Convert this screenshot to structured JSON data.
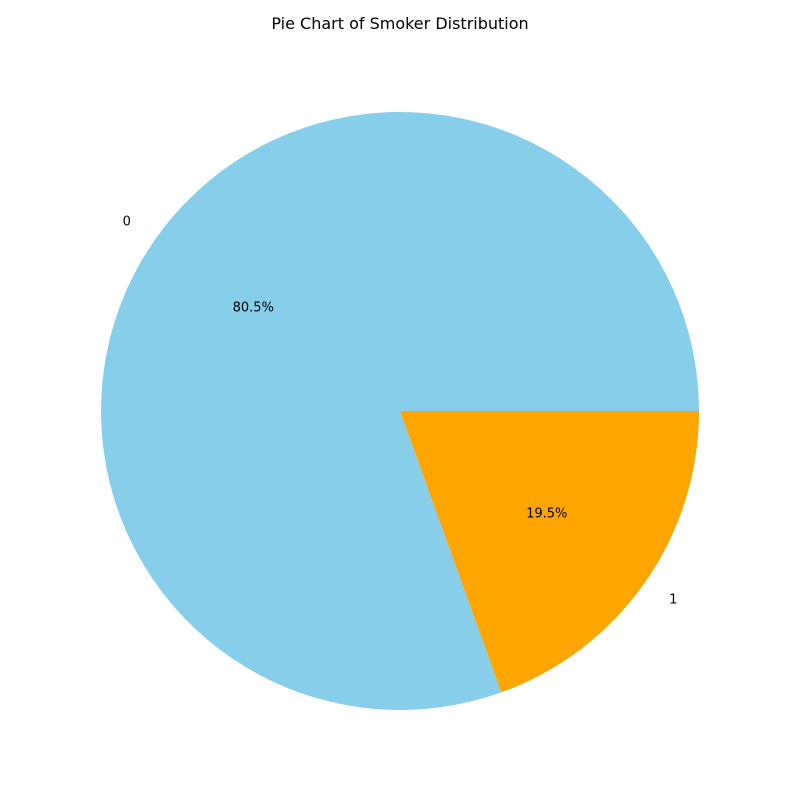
{
  "chart_data": {
    "type": "pie",
    "title": "Pie Chart of Smoker Distribution",
    "categories": [
      "0",
      "1"
    ],
    "values": [
      80.5,
      19.5
    ],
    "percent_labels": [
      "80.5%",
      "19.5%"
    ],
    "colors": [
      "#87ceeb",
      "#ffa500"
    ],
    "start_angle_deg": 0,
    "direction": "counterclockwise"
  }
}
